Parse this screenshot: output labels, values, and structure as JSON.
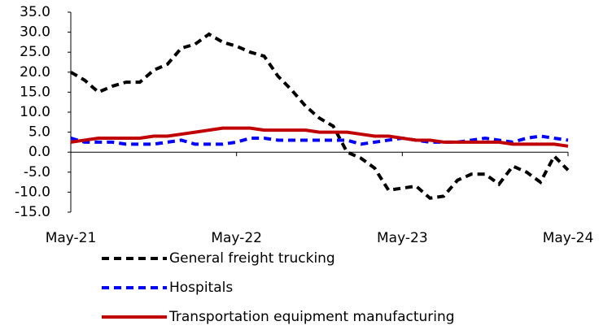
{
  "chart_data": {
    "type": "line",
    "categories": [
      "May-21",
      null,
      null,
      null,
      null,
      null,
      null,
      null,
      null,
      null,
      null,
      null,
      "May-22",
      null,
      null,
      null,
      null,
      null,
      null,
      null,
      null,
      null,
      null,
      null,
      "May-23",
      null,
      null,
      null,
      null,
      null,
      null,
      null,
      null,
      null,
      null,
      null,
      "May-24"
    ],
    "series": [
      {
        "name": "General freight trucking",
        "color": "#000000",
        "dash": "dashed",
        "values": [
          20,
          18,
          15,
          16.5,
          17.5,
          17.5,
          20.5,
          22,
          26,
          27,
          29.5,
          27.5,
          26.5,
          25,
          24,
          19,
          15.5,
          11.5,
          8.5,
          6.5,
          0,
          -1.5,
          -4,
          -9.5,
          -9,
          -8.5,
          -11.5,
          -11,
          -7,
          -5.5,
          -5.5,
          -8,
          -3.5,
          -5,
          -7.5,
          -1,
          -4.5
        ]
      },
      {
        "name": "Hospitals",
        "color": "#0000ff",
        "dash": "dashed",
        "values": [
          3.5,
          2.5,
          2.5,
          2.5,
          2,
          2,
          2,
          2.5,
          3,
          2,
          2,
          2,
          2.5,
          3.5,
          3.5,
          3,
          3,
          3,
          3,
          3,
          3,
          2,
          2.5,
          3,
          3.5,
          3,
          2.5,
          2.5,
          2.5,
          3,
          3.5,
          3,
          2.5,
          3.5,
          4,
          3.5,
          3
        ]
      },
      {
        "name": "Transportation equipment manufacturing",
        "color": "#c00000",
        "dash": "solid",
        "values": [
          2.5,
          3,
          3.5,
          3.5,
          3.5,
          3.5,
          4,
          4,
          4.5,
          5,
          5.5,
          6,
          6,
          6,
          5.5,
          5.5,
          5.5,
          5.5,
          5,
          5,
          5,
          4.5,
          4,
          4,
          3.5,
          3,
          3,
          2.5,
          2.5,
          2.5,
          2.5,
          2.5,
          2,
          2,
          2,
          2,
          1.5
        ]
      }
    ],
    "ylim": [
      -15,
      35
    ],
    "yticks": [
      {
        "value": -15,
        "label": "-15.0"
      },
      {
        "value": -10,
        "label": "-10.0"
      },
      {
        "value": -5,
        "label": "-5.0"
      },
      {
        "value": 0,
        "label": "0.0"
      },
      {
        "value": 5,
        "label": "5.0"
      },
      {
        "value": 10,
        "label": "10.0"
      },
      {
        "value": 15,
        "label": "15.0"
      },
      {
        "value": 20,
        "label": "20.0"
      },
      {
        "value": 25,
        "label": "25.0"
      },
      {
        "value": 30,
        "label": "30.0"
      },
      {
        "value": 35,
        "label": "35.0"
      }
    ],
    "grid": false,
    "legend": "bottom"
  }
}
